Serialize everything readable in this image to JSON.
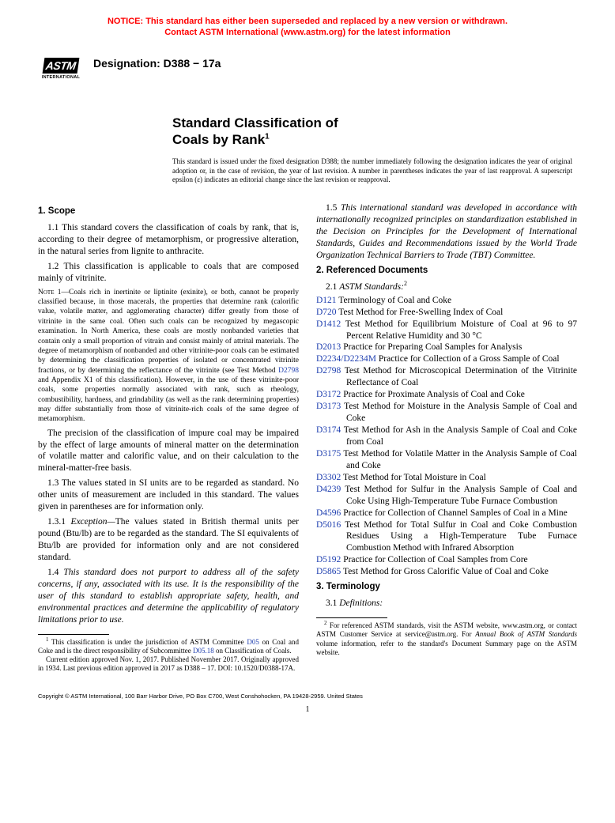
{
  "notice": {
    "line1": "NOTICE: This standard has either been superseded and replaced by a new version or withdrawn.",
    "line2": "Contact ASTM International (www.astm.org) for the latest information"
  },
  "logo": {
    "top": "ASTM",
    "bottom": "INTERNATIONAL"
  },
  "designation": "Designation: D388 − 17a",
  "title_line1": "Standard Classification of",
  "title_line2": "Coals by Rank",
  "title_sup": "1",
  "preamble": "This standard is issued under the fixed designation D388; the number immediately following the designation indicates the year of original adoption or, in the case of revision, the year of last revision. A number in parentheses indicates the year of last reapproval. A superscript epsilon (ε) indicates an editorial change since the last revision or reapproval.",
  "sections": {
    "scope_heading": "1. Scope",
    "p1_1": "1.1 This standard covers the classification of coals by rank, that is, according to their degree of metamorphism, or progressive alteration, in the natural series from lignite to anthracite.",
    "p1_2": "1.2 This classification is applicable to coals that are composed mainly of vitrinite.",
    "note1_label": "Note 1—",
    "note1_a": "Coals rich in inertinite or liptinite (exinite), or both, cannot be properly classified because, in those macerals, the properties that determine rank (calorific value, volatile matter, and agglomerating character) differ greatly from those of vitrinite in the same coal. Often such coals can be recognized by megascopic examination. In North America, these coals are mostly nonbanded varieties that contain only a small proportion of vitrain and consist mainly of attrital materials. The degree of metamorphism of nonbanded and other vitrinite-poor coals can be estimated by determining the classification properties of isolated or concentrated vitrinite fractions, or by determining the reflectance of the vitrinite (see Test Method ",
    "note1_link": "D2798",
    "note1_b": " and Appendix X1 of this classification). However, in the use of these vitrinite-poor coals, some properties normally associated with rank, such as rheology, combustibility, hardness, and grindability (as well as the rank determining properties) may differ substantially from those of vitrinite-rich coals of the same degree of metamorphism.",
    "precision": "The precision of the classification of impure coal may be impaired by the effect of large amounts of mineral matter on the determination of volatile matter and calorific value, and on their calculation to the mineral-matter-free basis.",
    "p1_3": "1.3 The values stated in SI units are to be regarded as standard. No other units of measurement are included in this standard. The values given in parentheses are for information only.",
    "p1_3_1_lbl": "1.3.1 ",
    "p1_3_1_head": "Exception—",
    "p1_3_1": "The values stated in British thermal units per pound (Btu/lb) are to be regarded as the standard. The SI equivalents of Btu/lb are provided for information only and are not considered standard.",
    "p1_4_lbl": "1.4 ",
    "p1_4": "This standard does not purport to address all of the safety concerns, if any, associated with its use. It is the responsibility of the user of this standard to establish appropriate safety, health, and environmental practices and determine the applicability of regulatory limitations prior to use.",
    "p1_5_lbl": "1.5 ",
    "p1_5": "This international standard was developed in accordance with internationally recognized principles on standardization established in the Decision on Principles for the Development of International Standards, Guides and Recommendations issued by the World Trade Organization Technical Barriers to Trade (TBT) Committee.",
    "refdocs_heading": "2. Referenced Documents",
    "astm_stds_lbl": "2.1 ",
    "astm_stds_head": "ASTM Standards:",
    "astm_stds_sup": "2",
    "terminology_heading": "3. Terminology",
    "defs_lbl": "3.1 ",
    "defs_head": "Definitions:"
  },
  "refs": [
    {
      "code": "D121",
      "title": " Terminology of Coal and Coke"
    },
    {
      "code": "D720",
      "title": " Test Method for Free-Swelling Index of Coal"
    },
    {
      "code": "D1412",
      "title": " Test Method for Equilibrium Moisture of Coal at 96 to 97 Percent Relative Humidity and 30 °C"
    },
    {
      "code": "D2013",
      "title": " Practice for Preparing Coal Samples for Analysis"
    },
    {
      "code": "D2234/D2234M",
      "title": " Practice for Collection of a Gross Sample of Coal"
    },
    {
      "code": "D2798",
      "title": " Test Method for Microscopical Determination of the Vitrinite Reflectance of Coal"
    },
    {
      "code": "D3172",
      "title": " Practice for Proximate Analysis of Coal and Coke"
    },
    {
      "code": "D3173",
      "title": " Test Method for Moisture in the Analysis Sample of Coal and Coke"
    },
    {
      "code": "D3174",
      "title": " Test Method for Ash in the Analysis Sample of Coal and Coke from Coal"
    },
    {
      "code": "D3175",
      "title": " Test Method for Volatile Matter in the Analysis Sample of Coal and Coke"
    },
    {
      "code": "D3302",
      "title": " Test Method for Total Moisture in Coal"
    },
    {
      "code": "D4239",
      "title": " Test Method for Sulfur in the Analysis Sample of Coal and Coke Using High-Temperature Tube Furnace Combustion"
    },
    {
      "code": "D4596",
      "title": " Practice for Collection of Channel Samples of Coal in a Mine"
    },
    {
      "code": "D5016",
      "title": " Test Method for Total Sulfur in Coal and Coke Combustion Residues Using a High-Temperature Tube Furnace Combustion Method with Infrared Absorption"
    },
    {
      "code": "D5192",
      "title": " Practice for Collection of Coal Samples from Core"
    },
    {
      "code": "D5865",
      "title": " Test Method for Gross Calorific Value of Coal and Coke"
    }
  ],
  "footnotes": {
    "f1_a": "This classification is under the jurisdiction of ASTM Committee ",
    "f1_link1": "D05",
    "f1_b": " on Coal and Coke and is the direct responsibility of Subcommittee ",
    "f1_link2": "D05.18",
    "f1_c": " on Classification of Coals.",
    "f1_2": "Current edition approved Nov. 1, 2017. Published November 2017. Originally approved in 1934. Last previous edition approved in 2017 as D388 – 17. DOI: 10.1520/D0388-17A.",
    "f2_a": "For referenced ASTM standards, visit the ASTM website, www.astm.org, or contact ASTM Customer Service at service@astm.org. For ",
    "f2_i": "Annual Book of ASTM Standards",
    "f2_b": " volume information, refer to the standard's Document Summary page on the ASTM website."
  },
  "copyright": "Copyright © ASTM International, 100 Barr Harbor Drive, PO Box C700, West Conshohocken, PA 19428-2959. United States",
  "page_number": "1"
}
